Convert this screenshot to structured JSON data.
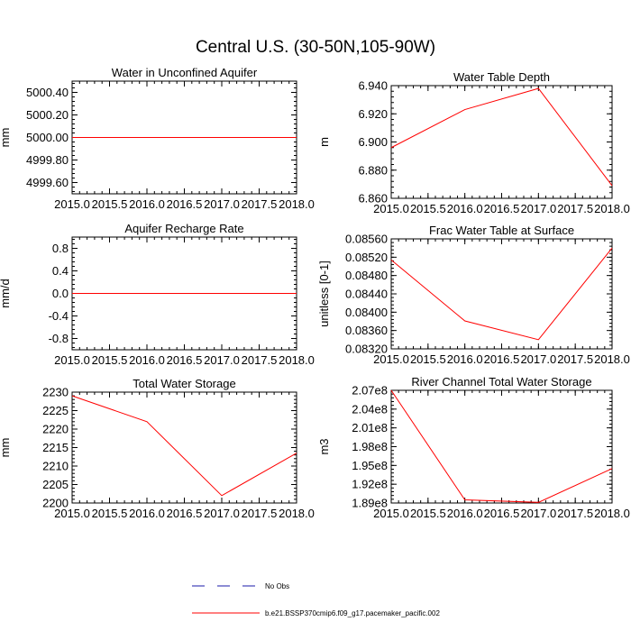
{
  "title": "Central U.S. (30-50N,105-90W)",
  "legend": [
    {
      "label": "No Obs",
      "color": "#1a1aa8",
      "dash": true
    },
    {
      "label": "b.e21.BSSP370cmip6.f09_g17.pacemaker_pacific.002",
      "color": "#ff0000",
      "dash": false
    }
  ],
  "chart_data": [
    {
      "type": "line",
      "title": "Water in Unconfined Aquifer",
      "ylabel": "mm",
      "x": [
        2015,
        2016,
        2017,
        2018
      ],
      "xlim": [
        2015,
        2018
      ],
      "xticks": [
        "2015.0",
        "2015.5",
        "2016.0",
        "2016.5",
        "2017.0",
        "2017.5",
        "2018.0"
      ],
      "ylim": [
        4999.5,
        5000.5
      ],
      "yticks": [
        "4999.60",
        "4999.80",
        "5000.00",
        "5000.20",
        "5000.40"
      ],
      "series": [
        {
          "color": "#ff0000",
          "values": [
            5000,
            5000,
            5000,
            5000
          ]
        }
      ]
    },
    {
      "type": "line",
      "title": "Water Table Depth",
      "ylabel": "m",
      "x": [
        2015,
        2016,
        2017,
        2018
      ],
      "xlim": [
        2015,
        2018
      ],
      "xticks": [
        "2015.0",
        "2015.5",
        "2016.0",
        "2016.5",
        "2017.0",
        "2017.5",
        "2018.0"
      ],
      "ylim": [
        6.86,
        6.94
      ],
      "yticks": [
        "6.860",
        "6.880",
        "6.900",
        "6.920",
        "6.940"
      ],
      "series": [
        {
          "color": "#ff0000",
          "values": [
            6.896,
            6.923,
            6.938,
            6.869
          ]
        }
      ]
    },
    {
      "type": "line",
      "title": "Aquifer Recharge Rate",
      "ylabel": "mm/d",
      "x": [
        2015,
        2016,
        2017,
        2018
      ],
      "xlim": [
        2015,
        2018
      ],
      "xticks": [
        "2015.0",
        "2015.5",
        "2016.0",
        "2016.5",
        "2017.0",
        "2017.5",
        "2018.0"
      ],
      "ylim": [
        -1.0,
        1.0
      ],
      "yticks": [
        "-0.8",
        "-0.4",
        "0.0",
        "0.4",
        "0.8"
      ],
      "series": [
        {
          "color": "#ff0000",
          "values": [
            0,
            0,
            0,
            0
          ]
        }
      ]
    },
    {
      "type": "line",
      "title": "Frac Water Table at Surface",
      "ylabel": "unitless [0-1]",
      "x": [
        2015,
        2016,
        2017,
        2018
      ],
      "xlim": [
        2015,
        2018
      ],
      "xticks": [
        "2015.0",
        "2015.5",
        "2016.0",
        "2016.5",
        "2017.0",
        "2017.5",
        "2018.0"
      ],
      "ylim": [
        0.0832,
        0.0856
      ],
      "yticks": [
        "0.08320",
        "0.08360",
        "0.08400",
        "0.08440",
        "0.08480",
        "0.08520",
        "0.08560"
      ],
      "series": [
        {
          "color": "#ff0000",
          "values": [
            0.08514,
            0.08381,
            0.0834,
            0.0854
          ]
        }
      ]
    },
    {
      "type": "line",
      "title": "Total Water Storage",
      "ylabel": "mm",
      "x": [
        2015,
        2016,
        2017,
        2018
      ],
      "xlim": [
        2015,
        2018
      ],
      "xticks": [
        "2015.0",
        "2015.5",
        "2016.0",
        "2016.5",
        "2017.0",
        "2017.5",
        "2018.0"
      ],
      "ylim": [
        2200,
        2230
      ],
      "yticks": [
        "2200",
        "2205",
        "2210",
        "2215",
        "2220",
        "2225",
        "2230"
      ],
      "series": [
        {
          "color": "#ff0000",
          "values": [
            2229,
            2222,
            2202,
            2213.5
          ]
        }
      ]
    },
    {
      "type": "line",
      "title": "River Channel Total Water Storage",
      "ylabel": "m3",
      "x": [
        2015,
        2016,
        2017,
        2018
      ],
      "xlim": [
        2015,
        2018
      ],
      "xticks": [
        "2015.0",
        "2015.5",
        "2016.0",
        "2016.5",
        "2017.0",
        "2017.5",
        "2018.0"
      ],
      "ylim": [
        189000000,
        207000000
      ],
      "yticks": [
        "1.89e8",
        "1.92e8",
        "1.95e8",
        "1.98e8",
        "2.01e8",
        "2.04e8",
        "2.07e8"
      ],
      "ytickvals": [
        189000000,
        192000000,
        195000000,
        198000000,
        201000000,
        204000000,
        207000000
      ],
      "series": [
        {
          "color": "#ff0000",
          "values": [
            207000000,
            189500000,
            189100000,
            194500000
          ]
        }
      ]
    }
  ]
}
